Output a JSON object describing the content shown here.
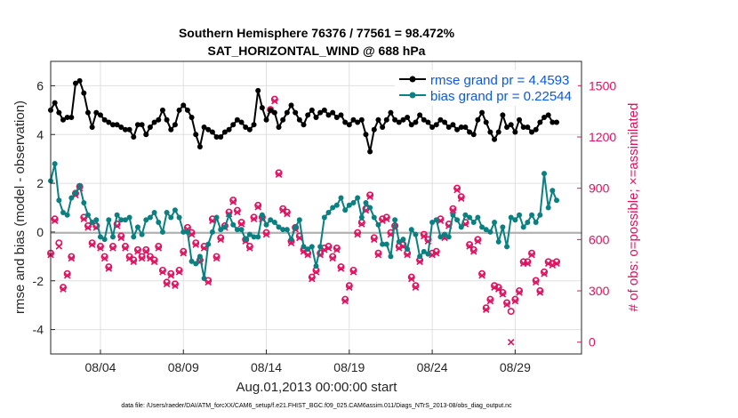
{
  "colors": {
    "rmse": "#000000",
    "bias": "#0b8080",
    "obs": "#e0115f",
    "zero_line": "#b0b0b0",
    "grid": "#e0e0e0",
    "legend_text": "#0a58e8"
  },
  "chart_data": {
    "type": "line",
    "title": "Southern Hemisphere 76376 / 77561 = 98.472%",
    "subtitle": "SAT_HORIZONTAL_WIND @ 688 hPa",
    "xlabel": "Aug.01,2013 00:00:00 start",
    "ylabel": "rmse and bias (model - observation)",
    "ylabel_right": "# of obs: o=possible; ×=assimilated",
    "footer": "data file: /Users/raeder/DAI/ATM_forcXX/CAM6_setup/f.e21.FHIST_BGC.f09_025.CAM6assim.011/Diags_NTrS_2013-08/obs_diag_output.nc",
    "x_ticks": [
      "08/04",
      "08/09",
      "08/14",
      "08/19",
      "08/24",
      "08/29"
    ],
    "x_tick_days": [
      4,
      9,
      14,
      19,
      24,
      29
    ],
    "xlim": [
      1,
      33
    ],
    "ylim": [
      -5,
      7
    ],
    "y_ticks": [
      "6",
      "4",
      "2",
      "0",
      "-2",
      "-4"
    ],
    "y_tick_values": [
      6,
      4,
      2,
      0,
      -2,
      -4
    ],
    "ylim_right": [
      -69.1,
      1642
    ],
    "y_ticks_right": [
      "1500",
      "1200",
      "900",
      "600",
      "300",
      "0"
    ],
    "y_tick_values_right": [
      1500,
      1200,
      900,
      600,
      300,
      0
    ],
    "grid": true,
    "legend_position": "top-right",
    "series": [
      {
        "name": "rmse grand pr = 4.4593",
        "axis": "left",
        "start_day": 1.0,
        "step_days": 0.25,
        "values": [
          5.0,
          5.3,
          4.9,
          4.6,
          4.7,
          4.7,
          6.1,
          6.2,
          5.7,
          4.9,
          4.3,
          4.9,
          4.8,
          4.6,
          4.5,
          4.4,
          4.4,
          4.3,
          4.2,
          4.2,
          3.9,
          4.4,
          4.4,
          4.0,
          4.3,
          4.5,
          4.6,
          5.0,
          4.6,
          4.2,
          4.4,
          5.0,
          5.2,
          5.0,
          4.7,
          4.0,
          3.5,
          4.3,
          4.2,
          4.1,
          3.9,
          3.9,
          4.1,
          4.2,
          4.4,
          4.6,
          4.5,
          4.3,
          4.2,
          4.4,
          5.8,
          5.1,
          4.6,
          5.0,
          4.9,
          4.3,
          4.6,
          4.9,
          5.2,
          4.9,
          4.6,
          4.4,
          4.8,
          5.0,
          4.7,
          4.9,
          5.0,
          4.8,
          4.9,
          4.7,
          4.8,
          4.5,
          4.4,
          4.6,
          4.5,
          4.6,
          4.0,
          3.3,
          4.2,
          4.6,
          4.3,
          4.6,
          4.9,
          4.6,
          4.5,
          4.6,
          4.7,
          4.4,
          4.5,
          4.8,
          4.6,
          4.5,
          4.3,
          4.4,
          4.6,
          4.5,
          4.3,
          4.4,
          4.2,
          4.3,
          4.3,
          4.1,
          4.0,
          4.6,
          4.9,
          4.5,
          4.1,
          3.8,
          4.1,
          4.8,
          4.3,
          4.4,
          4.1,
          4.6,
          4.3,
          4.3,
          4.1,
          4.2,
          4.5,
          4.7,
          4.8,
          4.5,
          4.5
        ]
      },
      {
        "name": "bias grand pr = 0.22544",
        "axis": "left",
        "start_day": 1.0,
        "step_days": 0.25,
        "values": [
          2.1,
          2.8,
          1.3,
          0.8,
          0.7,
          1.4,
          1.6,
          1.9,
          1.2,
          0.7,
          0.4,
          0.5,
          -0.2,
          -0.3,
          0.5,
          -0.2,
          0.7,
          0.5,
          0.5,
          0.6,
          -0.2,
          0.2,
          -0.1,
          0.5,
          0.6,
          0.8,
          0.4,
          0.0,
          0.8,
          0.6,
          0.9,
          0.6,
          0.0,
          0.0,
          -1.2,
          -1.3,
          -1.0,
          -1.9,
          -0.5,
          0.0,
          0.6,
          0.1,
          0.2,
          0.7,
          0.3,
          0.1,
          0.1,
          -0.3,
          -0.1,
          -0.2,
          -0.2,
          0.7,
          0.3,
          0.5,
          0.4,
          0.2,
          0.1,
          0.1,
          -0.3,
          0.2,
          0.5,
          -0.6,
          -0.7,
          -0.6,
          -1.4,
          -0.6,
          0.6,
          0.8,
          1.0,
          1.1,
          1.4,
          0.9,
          1.1,
          1.2,
          1.4,
          0.6,
          1.2,
          1.0,
          0.6,
          0.3,
          -0.5,
          -0.5,
          -1.0,
          0.5,
          -0.4,
          -0.3,
          -0.7,
          0.1,
          -0.1,
          -1.0,
          -0.8,
          -0.9,
          0.4,
          0.5,
          -0.2,
          -0.1,
          -0.2,
          0.7,
          0.5,
          0.2,
          0.7,
          0.6,
          0.4,
          0.6,
          0.2,
          0.1,
          0.0,
          0.4,
          -0.4,
          0.2,
          -0.6,
          0.6,
          0.5,
          0.7,
          0.2,
          0.4,
          0.7,
          0.4,
          0.7,
          2.4,
          1.0,
          1.7,
          1.3
        ]
      },
      {
        "name": "# of obs possible",
        "axis": "right",
        "marker": "o",
        "start_day": 1.0,
        "step_days": 0.25,
        "values": [
          520,
          720,
          580,
          320,
          400,
          500,
          870,
          910,
          730,
          680,
          580,
          680,
          560,
          500,
          440,
          560,
          690,
          620,
          560,
          500,
          480,
          540,
          500,
          540,
          500,
          480,
          560,
          420,
          350,
          400,
          340,
          420,
          530,
          670,
          640,
          580,
          480,
          560,
          360,
          720,
          500,
          610,
          680,
          760,
          830,
          770,
          700,
          600,
          560,
          730,
          800,
          730,
          640,
          1360,
          1420,
          990,
          780,
          760,
          590,
          670,
          620,
          540,
          520,
          380,
          420,
          520,
          550,
          560,
          500,
          550,
          440,
          250,
          330,
          420,
          640,
          700,
          780,
          860,
          610,
          520,
          720,
          730,
          640,
          680,
          560,
          570,
          520,
          380,
          330,
          480,
          630,
          600,
          520,
          530,
          720,
          620,
          690,
          780,
          900,
          850,
          700,
          570,
          540,
          600,
          400,
          200,
          250,
          330,
          320,
          290,
          230,
          180,
          250,
          300,
          470,
          470,
          520,
          360,
          300,
          410,
          470,
          460,
          470
        ]
      },
      {
        "name": "# of obs assimilated",
        "axis": "right",
        "marker": "x",
        "start_day": 1.0,
        "step_days": 0.25,
        "values": [
          510,
          710,
          560,
          310,
          390,
          490,
          860,
          900,
          720,
          670,
          570,
          670,
          550,
          490,
          430,
          550,
          680,
          610,
          550,
          490,
          470,
          530,
          490,
          530,
          490,
          470,
          550,
          410,
          340,
          390,
          330,
          410,
          520,
          660,
          630,
          570,
          470,
          550,
          350,
          710,
          490,
          600,
          670,
          750,
          820,
          760,
          690,
          590,
          550,
          720,
          790,
          720,
          630,
          1350,
          1410,
          980,
          770,
          750,
          580,
          660,
          610,
          530,
          510,
          370,
          410,
          510,
          540,
          550,
          490,
          540,
          430,
          240,
          320,
          410,
          630,
          690,
          770,
          850,
          600,
          510,
          710,
          720,
          630,
          670,
          550,
          560,
          510,
          370,
          320,
          470,
          620,
          590,
          510,
          520,
          710,
          610,
          680,
          770,
          890,
          840,
          690,
          560,
          530,
          590,
          390,
          190,
          240,
          320,
          310,
          280,
          220,
          0,
          240,
          290,
          460,
          460,
          510,
          350,
          290,
          400,
          460,
          450,
          460
        ]
      }
    ]
  }
}
